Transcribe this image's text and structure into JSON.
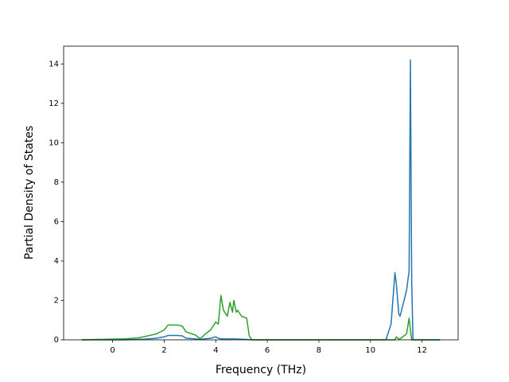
{
  "chart_data": {
    "type": "line",
    "x_label": "Frequency (THz)",
    "y_label": "Partial Density of States",
    "x": [
      -1.2,
      0.5,
      1.0,
      1.2,
      1.7,
      2.0,
      2.15,
      2.5,
      2.7,
      2.85,
      3.2,
      3.4,
      3.6,
      3.8,
      4.0,
      4.1,
      4.2,
      4.3,
      4.45,
      4.55,
      4.65,
      4.7,
      4.8,
      4.85,
      5.0,
      5.2,
      5.3,
      5.4,
      10.6,
      10.8,
      10.95,
      11.0,
      11.1,
      11.15,
      11.4,
      11.5,
      11.55,
      11.6,
      11.65,
      12.7
    ],
    "series": [
      {
        "color": "#1f77b4",
        "values": [
          0,
          0,
          0.02,
          0.03,
          0.08,
          0.15,
          0.22,
          0.22,
          0.2,
          0.08,
          0.05,
          0.02,
          0.05,
          0.08,
          0.15,
          0.08,
          0.05,
          0.05,
          0.04,
          0.05,
          0.04,
          0.05,
          0.04,
          0.04,
          0.03,
          0.02,
          0.01,
          0,
          0,
          0.8,
          3.4,
          2.9,
          1.3,
          1.2,
          2.5,
          3.5,
          14.2,
          3,
          0,
          0
        ]
      },
      {
        "color": "#2ca02c",
        "values": [
          0,
          0.05,
          0.1,
          0.15,
          0.3,
          0.5,
          0.75,
          0.75,
          0.7,
          0.4,
          0.25,
          0.05,
          0.3,
          0.5,
          0.9,
          0.8,
          2.25,
          1.5,
          1.2,
          1.9,
          1.4,
          2.0,
          1.4,
          1.5,
          1.2,
          1.1,
          0.2,
          0,
          0,
          0,
          0,
          0.15,
          0.05,
          0.05,
          0.3,
          1.1,
          0.5,
          0,
          0,
          0
        ]
      }
    ],
    "xlim": [
      -1.9,
      13.4
    ],
    "ylim": [
      0,
      14.9
    ],
    "xticks": [
      0,
      2,
      4,
      6,
      8,
      10,
      12
    ],
    "yticks": [
      0,
      2,
      4,
      6,
      8,
      10,
      12,
      14
    ]
  }
}
